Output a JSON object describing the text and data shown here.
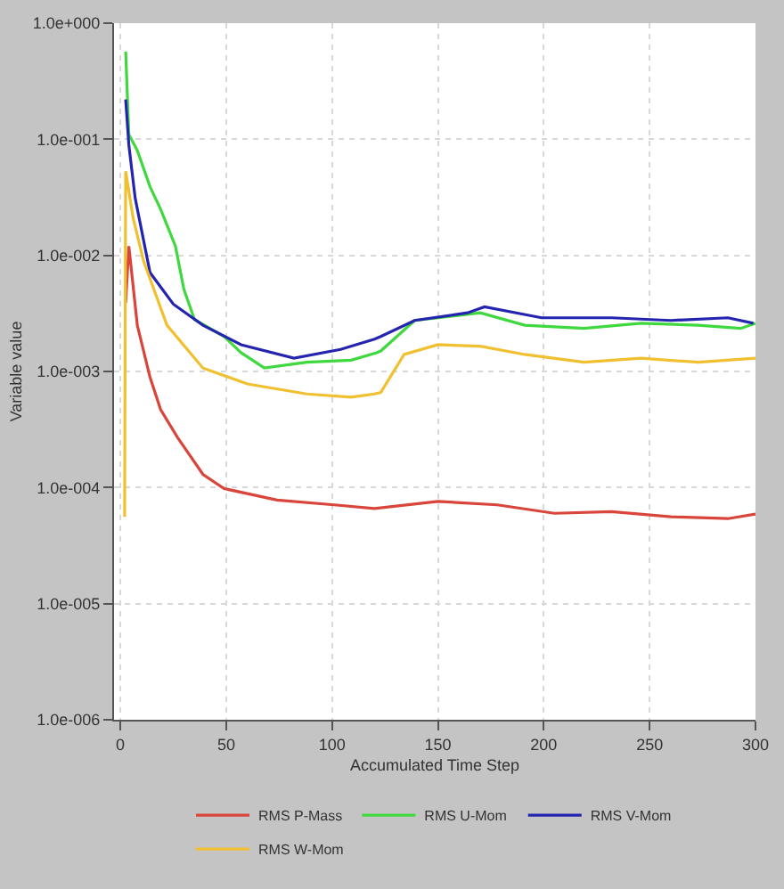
{
  "chart_data": {
    "type": "line",
    "xlabel": "Accumulated Time Step",
    "ylabel": "Variable value",
    "log": "y",
    "grid": true,
    "legend": "bottom",
    "marker": "none",
    "line_style": "solid",
    "xlim": [
      -3,
      300
    ],
    "xticks": [
      0,
      50,
      100,
      150,
      200,
      250,
      300
    ],
    "ylim": [
      1e-06,
      1
    ],
    "yticks": [
      {
        "value": 1,
        "label": "1.0e+000"
      },
      {
        "value": 0.1,
        "label": "1.0e-001"
      },
      {
        "value": 0.01,
        "label": "1.0e-002"
      },
      {
        "value": 0.001,
        "label": "1.0e-003"
      },
      {
        "value": 0.0001,
        "label": "1.0e-004"
      },
      {
        "value": 1e-05,
        "label": "1.0e-005"
      },
      {
        "value": 1e-06,
        "label": "1.0e-006"
      }
    ],
    "series": [
      {
        "name": "RMS P-Mass",
        "color": "#d9453a",
        "x": [
          2.5,
          4,
          8,
          14,
          19,
          27,
          39,
          49,
          74,
          101,
          120,
          150,
          178,
          205,
          232,
          260,
          287,
          300
        ],
        "values": [
          0.0039,
          0.012,
          0.0025,
          0.00089,
          0.00047,
          0.00027,
          0.00013,
          9.8e-05,
          7.8e-05,
          7.1e-05,
          6.6e-05,
          7.6e-05,
          7.1e-05,
          6e-05,
          6.2e-05,
          5.6e-05,
          5.4e-05,
          5.9e-05
        ]
      },
      {
        "name": "RMS U-Mom",
        "color": "#3fd83f",
        "x": [
          2.5,
          4,
          8,
          14,
          19,
          26,
          30,
          35,
          49,
          57,
          68,
          88,
          109,
          121,
          123,
          139,
          170,
          191,
          219,
          246,
          273,
          293,
          300
        ],
        "values": [
          0.57,
          0.11,
          0.08,
          0.039,
          0.025,
          0.012,
          0.0051,
          0.0028,
          0.002,
          0.00145,
          0.00107,
          0.0012,
          0.00125,
          0.00145,
          0.0015,
          0.00275,
          0.0032,
          0.0025,
          0.00235,
          0.0026,
          0.0025,
          0.00235,
          0.0026
        ]
      },
      {
        "name": "RMS V-Mom",
        "color": "#2424b0",
        "x": [
          2.5,
          4,
          7,
          14,
          25,
          39,
          57,
          82,
          104,
          120,
          123,
          139,
          164,
          172,
          199,
          232,
          260,
          287,
          299
        ],
        "values": [
          0.22,
          0.089,
          0.031,
          0.0071,
          0.0038,
          0.0025,
          0.0017,
          0.0013,
          0.00155,
          0.0019,
          0.002,
          0.00275,
          0.0032,
          0.0036,
          0.0029,
          0.0029,
          0.00275,
          0.0029,
          0.0026
        ]
      },
      {
        "name": "RMS W-Mom",
        "color": "#f0c030",
        "x": [
          2,
          2.5,
          6,
          11,
          22,
          39,
          60,
          88,
          109,
          120,
          123,
          134,
          150,
          170,
          191,
          219,
          246,
          273,
          300
        ],
        "values": [
          5.6e-05,
          0.053,
          0.021,
          0.0089,
          0.0025,
          0.00107,
          0.00078,
          0.00064,
          0.0006,
          0.00064,
          0.00066,
          0.0014,
          0.0017,
          0.00165,
          0.0014,
          0.0012,
          0.0013,
          0.0012,
          0.0013
        ]
      }
    ]
  }
}
